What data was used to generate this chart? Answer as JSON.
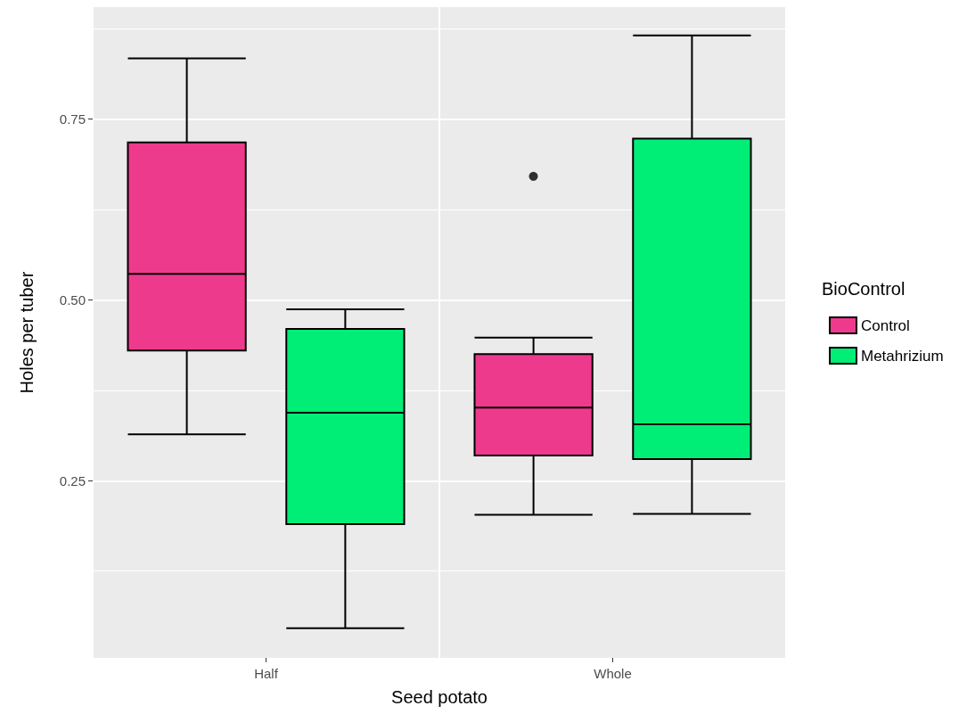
{
  "chart_data": {
    "type": "box",
    "xlabel": "Seed potato",
    "ylabel": "Holes per tuber",
    "legend_title": "BioControl",
    "categories": [
      "Half",
      "Whole"
    ],
    "ylim": [
      0.005,
      0.905
    ],
    "yticks": [
      {
        "value": 0.25,
        "label": "0.25"
      },
      {
        "value": 0.5,
        "label": "0.50"
      },
      {
        "value": 0.75,
        "label": "0.75"
      }
    ],
    "grid": true,
    "legend": "right",
    "series": [
      {
        "name": "Control",
        "color": "#ee3a8c",
        "boxes": [
          {
            "low": 0.314,
            "q1": 0.43,
            "median": 0.536,
            "q3": 0.718,
            "high": 0.834
          },
          {
            "low": 0.203,
            "q1": 0.285,
            "median": 0.351,
            "q3": 0.425,
            "high": 0.448,
            "outliers": [
              0.671
            ]
          }
        ]
      },
      {
        "name": "Metahrizium",
        "color": "#00ee76",
        "boxes": [
          {
            "low": 0.046,
            "q1": 0.19,
            "median": 0.344,
            "q3": 0.46,
            "high": 0.487
          },
          {
            "low": 0.204,
            "q1": 0.28,
            "median": 0.328,
            "q3": 0.723,
            "high": 0.866
          }
        ]
      }
    ]
  }
}
